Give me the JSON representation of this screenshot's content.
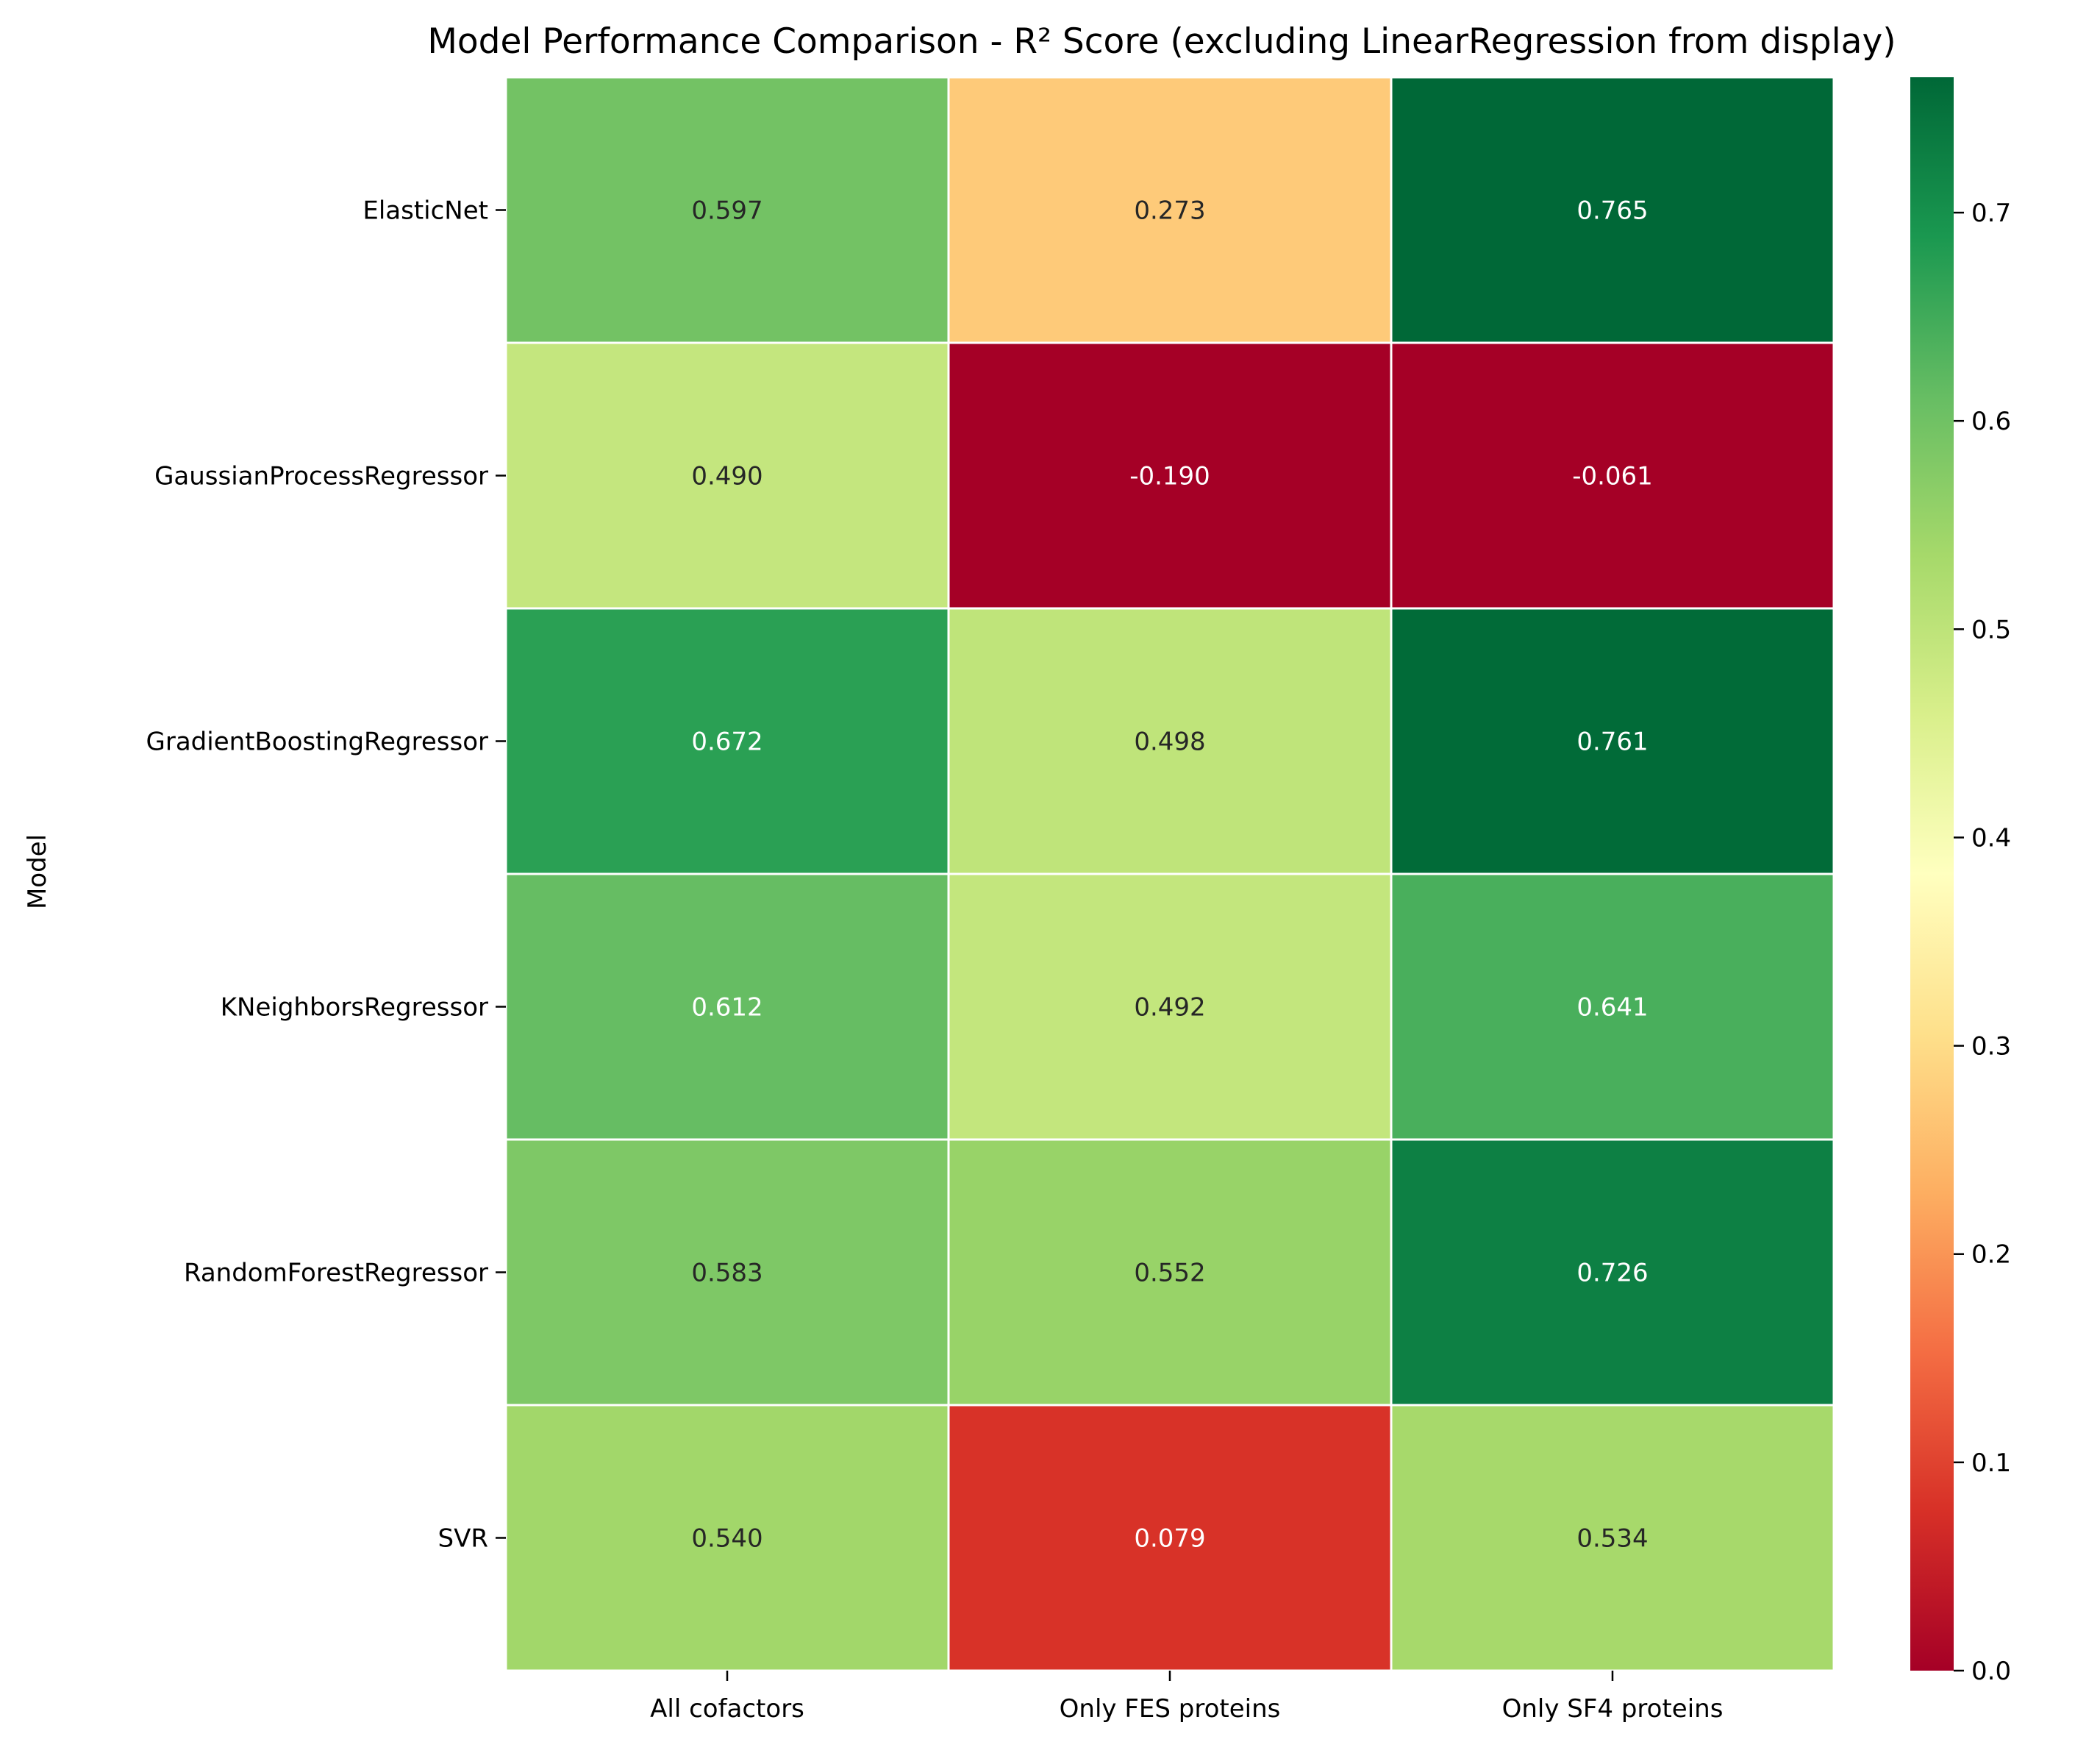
{
  "chart_data": {
    "type": "heatmap",
    "title": "Model Performance Comparison - R² Score (excluding LinearRegression from display)",
    "xlabel": "",
    "ylabel": "Model",
    "columns": [
      "All cofactors",
      "Only FES proteins",
      "Only SF4 proteins"
    ],
    "rows": [
      {
        "name": "ElasticNet",
        "values": [
          0.597,
          0.273,
          0.765
        ]
      },
      {
        "name": "GaussianProcessRegressor",
        "values": [
          0.49,
          -0.19,
          -0.061
        ]
      },
      {
        "name": "GradientBoostingRegressor",
        "values": [
          0.672,
          0.498,
          0.761
        ]
      },
      {
        "name": "KNeighborsRegressor",
        "values": [
          0.612,
          0.492,
          0.641
        ]
      },
      {
        "name": "RandomForestRegressor",
        "values": [
          0.583,
          0.552,
          0.726
        ]
      },
      {
        "name": "SVR",
        "values": [
          0.54,
          0.079,
          0.534
        ]
      }
    ],
    "annotation_format": "0.000",
    "colormap": "RdYlGn",
    "color_range": [
      0.0,
      0.765
    ],
    "colorbar": {
      "ticks": [
        0.0,
        0.1,
        0.2,
        0.3,
        0.4,
        0.5,
        0.6,
        0.7
      ],
      "tick_labels": [
        "0.0",
        "0.1",
        "0.2",
        "0.3",
        "0.4",
        "0.5",
        "0.6",
        "0.7"
      ]
    },
    "colors": {
      "cell_border": "#ffffff",
      "text_dark": "#262626",
      "text_light": "#ffffff"
    }
  }
}
